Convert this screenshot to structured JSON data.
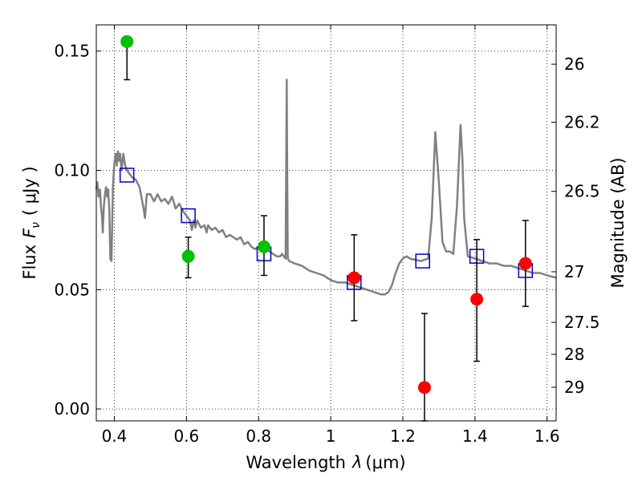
{
  "chart_data": {
    "type": "scatter",
    "title": "",
    "xlabel": "Wavelength",
    "xlabel_symbol": "λ",
    "xlabel_unit": "(μm)",
    "ylabel": "Flux",
    "ylabel_symbol": "F",
    "ylabel_subscript": "ν",
    "ylabel_unit": "( μJy )",
    "y2label": "Magnitude (AB)",
    "xlim": [
      0.35,
      1.625
    ],
    "ylim": [
      -0.005,
      0.161
    ],
    "grid": true,
    "xticks": [
      {
        "v": 0.4,
        "label": "0.4"
      },
      {
        "v": 0.6,
        "label": "0.6"
      },
      {
        "v": 0.8,
        "label": "0.8"
      },
      {
        "v": 1.0,
        "label": "1"
      },
      {
        "v": 1.2,
        "label": "1.2"
      },
      {
        "v": 1.4,
        "label": "1.4"
      },
      {
        "v": 1.6,
        "label": "1.6"
      }
    ],
    "yticks": [
      {
        "v": 0.0,
        "label": "0.00"
      },
      {
        "v": 0.05,
        "label": "0.05"
      },
      {
        "v": 0.1,
        "label": "0.10"
      },
      {
        "v": 0.15,
        "label": "0.15"
      }
    ],
    "y2ticks": [
      {
        "flux": 0.1445,
        "label": "26"
      },
      {
        "flux": 0.1202,
        "label": "26.2"
      },
      {
        "flux": 0.0912,
        "label": "26.5"
      },
      {
        "flux": 0.0575,
        "label": "27"
      },
      {
        "flux": 0.0363,
        "label": "27.5"
      },
      {
        "flux": 0.0229,
        "label": "28"
      },
      {
        "flux": 0.0091,
        "label": "29"
      }
    ],
    "series": [
      {
        "kind": "line",
        "color": "#808080",
        "points": [
          [
            0.35,
            0.092
          ],
          [
            0.353,
            0.095
          ],
          [
            0.356,
            0.089
          ],
          [
            0.36,
            0.092
          ],
          [
            0.363,
            0.085
          ],
          [
            0.366,
            0.08
          ],
          [
            0.368,
            0.074
          ],
          [
            0.371,
            0.085
          ],
          [
            0.374,
            0.09
          ],
          [
            0.377,
            0.093
          ],
          [
            0.38,
            0.089
          ],
          [
            0.383,
            0.092
          ],
          [
            0.386,
            0.084
          ],
          [
            0.389,
            0.063
          ],
          [
            0.392,
            0.062
          ],
          [
            0.396,
            0.093
          ],
          [
            0.4,
            0.103
          ],
          [
            0.404,
            0.107
          ],
          [
            0.407,
            0.102
          ],
          [
            0.41,
            0.108
          ],
          [
            0.413,
            0.104
          ],
          [
            0.416,
            0.107
          ],
          [
            0.42,
            0.1
          ],
          [
            0.425,
            0.107
          ],
          [
            0.43,
            0.102
          ],
          [
            0.435,
            0.1
          ],
          [
            0.44,
            0.099
          ],
          [
            0.45,
            0.097
          ],
          [
            0.46,
            0.096
          ],
          [
            0.47,
            0.093
          ],
          [
            0.48,
            0.085
          ],
          [
            0.485,
            0.08
          ],
          [
            0.49,
            0.09
          ],
          [
            0.5,
            0.09
          ],
          [
            0.51,
            0.087
          ],
          [
            0.52,
            0.09
          ],
          [
            0.53,
            0.087
          ],
          [
            0.54,
            0.088
          ],
          [
            0.55,
            0.086
          ],
          [
            0.56,
            0.089
          ],
          [
            0.57,
            0.084
          ],
          [
            0.58,
            0.086
          ],
          [
            0.59,
            0.083
          ],
          [
            0.6,
            0.081
          ],
          [
            0.61,
            0.079
          ],
          [
            0.615,
            0.075
          ],
          [
            0.62,
            0.079
          ],
          [
            0.625,
            0.076
          ],
          [
            0.63,
            0.079
          ],
          [
            0.64,
            0.076
          ],
          [
            0.65,
            0.077
          ],
          [
            0.656,
            0.074
          ],
          [
            0.66,
            0.077
          ],
          [
            0.67,
            0.075
          ],
          [
            0.68,
            0.076
          ],
          [
            0.69,
            0.074
          ],
          [
            0.7,
            0.075
          ],
          [
            0.71,
            0.072
          ],
          [
            0.72,
            0.073
          ],
          [
            0.73,
            0.072
          ],
          [
            0.74,
            0.071
          ],
          [
            0.75,
            0.072
          ],
          [
            0.76,
            0.069
          ],
          [
            0.77,
            0.07
          ],
          [
            0.78,
            0.068
          ],
          [
            0.79,
            0.067
          ],
          [
            0.8,
            0.068
          ],
          [
            0.81,
            0.066
          ],
          [
            0.82,
            0.067
          ],
          [
            0.83,
            0.066
          ],
          [
            0.84,
            0.065
          ],
          [
            0.85,
            0.064
          ],
          [
            0.86,
            0.064
          ],
          [
            0.865,
            0.065
          ],
          [
            0.87,
            0.064
          ],
          [
            0.875,
            0.063
          ],
          [
            0.877,
            0.11
          ],
          [
            0.878,
            0.138
          ],
          [
            0.879,
            0.11
          ],
          [
            0.881,
            0.063
          ],
          [
            0.885,
            0.062
          ],
          [
            0.9,
            0.061
          ],
          [
            0.92,
            0.06
          ],
          [
            0.94,
            0.058
          ],
          [
            0.96,
            0.057
          ],
          [
            0.98,
            0.056
          ],
          [
            1.0,
            0.054
          ],
          [
            1.02,
            0.053
          ],
          [
            1.04,
            0.053
          ],
          [
            1.06,
            0.052
          ],
          [
            1.08,
            0.051
          ],
          [
            1.1,
            0.05
          ],
          [
            1.12,
            0.049
          ],
          [
            1.14,
            0.048
          ],
          [
            1.15,
            0.048
          ],
          [
            1.16,
            0.049
          ],
          [
            1.17,
            0.052
          ],
          [
            1.18,
            0.057
          ],
          [
            1.19,
            0.061
          ],
          [
            1.2,
            0.063
          ],
          [
            1.21,
            0.064
          ],
          [
            1.22,
            0.063
          ],
          [
            1.25,
            0.062
          ],
          [
            1.27,
            0.063
          ],
          [
            1.28,
            0.08
          ],
          [
            1.29,
            0.116
          ],
          [
            1.3,
            0.095
          ],
          [
            1.31,
            0.07
          ],
          [
            1.32,
            0.066
          ],
          [
            1.33,
            0.066
          ],
          [
            1.34,
            0.065
          ],
          [
            1.35,
            0.085
          ],
          [
            1.36,
            0.119
          ],
          [
            1.365,
            0.105
          ],
          [
            1.37,
            0.08
          ],
          [
            1.38,
            0.064
          ],
          [
            1.4,
            0.063
          ],
          [
            1.42,
            0.062
          ],
          [
            1.44,
            0.061
          ],
          [
            1.46,
            0.061
          ],
          [
            1.48,
            0.06
          ],
          [
            1.5,
            0.06
          ],
          [
            1.52,
            0.059
          ],
          [
            1.54,
            0.058
          ],
          [
            1.56,
            0.057
          ],
          [
            1.58,
            0.057
          ],
          [
            1.6,
            0.056
          ],
          [
            1.625,
            0.055
          ]
        ]
      },
      {
        "kind": "open-square",
        "color": "#0000cc",
        "points": [
          [
            0.435,
            0.098
          ],
          [
            0.605,
            0.081
          ],
          [
            0.815,
            0.065
          ],
          [
            1.065,
            0.053
          ],
          [
            1.255,
            0.062
          ],
          [
            1.405,
            0.064
          ],
          [
            1.54,
            0.058
          ]
        ]
      },
      {
        "kind": "dot",
        "color": "#00c000",
        "points": [
          {
            "x": 0.435,
            "y": 0.154,
            "err_lo": 0.138,
            "err_hi": 0.154
          },
          {
            "x": 0.605,
            "y": 0.064,
            "err_lo": 0.055,
            "err_hi": 0.072
          },
          {
            "x": 0.815,
            "y": 0.068,
            "err_lo": 0.056,
            "err_hi": 0.081
          }
        ]
      },
      {
        "kind": "dot",
        "color": "#ff0000",
        "points": [
          {
            "x": 1.065,
            "y": 0.055,
            "err_lo": 0.037,
            "err_hi": 0.073
          },
          {
            "x": 1.26,
            "y": 0.009,
            "err_lo": -0.005,
            "err_hi": 0.04
          },
          {
            "x": 1.405,
            "y": 0.046,
            "err_lo": 0.02,
            "err_hi": 0.071
          },
          {
            "x": 1.54,
            "y": 0.061,
            "err_lo": 0.043,
            "err_hi": 0.079
          }
        ]
      }
    ]
  }
}
